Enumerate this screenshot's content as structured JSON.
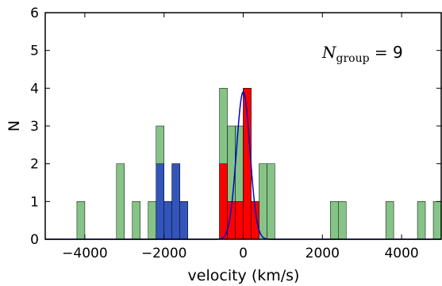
{
  "chart_data": {
    "type": "bar",
    "xlabel": "velocity (km/s)",
    "ylabel": "N",
    "xlim": [
      -5000,
      5000
    ],
    "ylim": [
      0,
      6
    ],
    "xticks": [
      -4000,
      -2000,
      0,
      2000,
      4000
    ],
    "yticks": [
      0,
      1,
      2,
      3,
      4,
      5,
      6
    ],
    "xtick_labels": [
      "−4000",
      "−2000",
      "0",
      "2000",
      "4000"
    ],
    "ytick_labels": [
      "0",
      "1",
      "2",
      "3",
      "4",
      "5",
      "6"
    ],
    "bin_width": 200,
    "annotation": {
      "symbol": "N",
      "subscript": "group",
      "relation": " = ",
      "value": "9"
    },
    "series": [
      {
        "color": "#80c080",
        "bins": [
          {
            "x0": -4200,
            "count": 1
          },
          {
            "x0": -3200,
            "count": 2
          },
          {
            "x0": -2800,
            "count": 1
          },
          {
            "x0": -2400,
            "count": 1
          },
          {
            "x0": -2200,
            "count": 3
          },
          {
            "x0": -2000,
            "count": 1
          },
          {
            "x0": -1800,
            "count": 2
          },
          {
            "x0": -1600,
            "count": 1
          },
          {
            "x0": -600,
            "count": 4
          },
          {
            "x0": -400,
            "count": 3
          },
          {
            "x0": -200,
            "count": 3
          },
          {
            "x0": 0,
            "count": 4
          },
          {
            "x0": 200,
            "count": 1
          },
          {
            "x0": 400,
            "count": 2
          },
          {
            "x0": 600,
            "count": 2
          },
          {
            "x0": 2200,
            "count": 1
          },
          {
            "x0": 2400,
            "count": 1
          },
          {
            "x0": 3600,
            "count": 1
          },
          {
            "x0": 4400,
            "count": 1
          },
          {
            "x0": 4800,
            "count": 1
          }
        ]
      },
      {
        "color": "#3355bb",
        "bins": [
          {
            "x0": -2200,
            "count": 2
          },
          {
            "x0": -2000,
            "count": 1
          },
          {
            "x0": -1800,
            "count": 2
          },
          {
            "x0": -1600,
            "count": 1
          }
        ]
      },
      {
        "color": "#ff0000",
        "bins": [
          {
            "x0": -600,
            "count": 2
          },
          {
            "x0": -400,
            "count": 1
          },
          {
            "x0": -200,
            "count": 1
          },
          {
            "x0": 0,
            "count": 4
          },
          {
            "x0": 200,
            "count": 1
          }
        ]
      }
    ],
    "curve": {
      "type": "gaussian",
      "color": "#0000cc",
      "mean": 0,
      "sigma": 170,
      "peak": 3.9
    }
  }
}
